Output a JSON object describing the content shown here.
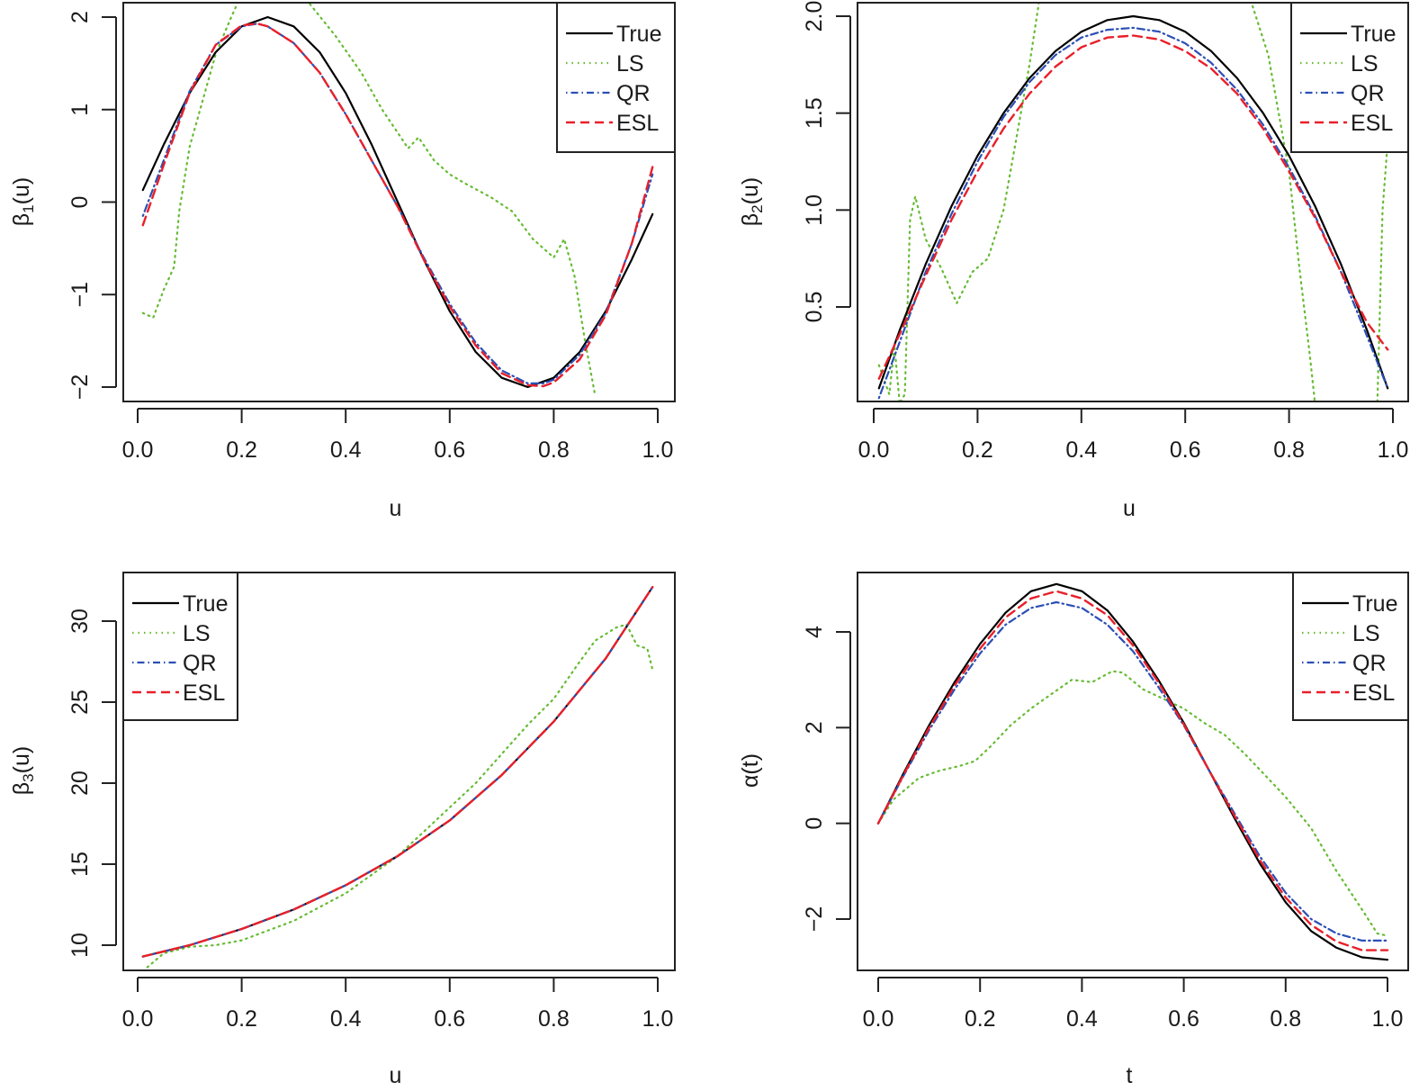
{
  "chart_data": [
    {
      "type": "line",
      "panel": "top-left",
      "title": "",
      "xlabel": "u",
      "ylabel": "β1(u)",
      "ylabel_symbol": "β",
      "ylabel_sub": "1",
      "ylabel_arg": "(u)",
      "xlim": [
        0.0,
        1.0
      ],
      "ylim": [
        -2.1,
        2.1
      ],
      "xticks": [
        "0.0",
        "0.2",
        "0.4",
        "0.6",
        "0.8",
        "1.0"
      ],
      "yticks": [
        "-2",
        "-1",
        "0",
        "1",
        "2"
      ],
      "grid": false,
      "legend_position": "top-right",
      "series": [
        {
          "name": "True",
          "style": "solid",
          "color": "#000000",
          "x": [
            0.01,
            0.05,
            0.1,
            0.15,
            0.2,
            0.25,
            0.3,
            0.35,
            0.4,
            0.45,
            0.5,
            0.55,
            0.6,
            0.65,
            0.7,
            0.75,
            0.8,
            0.85,
            0.9,
            0.95,
            0.99
          ],
          "y": [
            0.13,
            0.62,
            1.18,
            1.62,
            1.9,
            2.0,
            1.9,
            1.62,
            1.18,
            0.62,
            0.0,
            -0.62,
            -1.18,
            -1.62,
            -1.9,
            -2.0,
            -1.9,
            -1.62,
            -1.18,
            -0.62,
            -0.13
          ]
        },
        {
          "name": "LS",
          "style": "dotted",
          "color": "#66bb33",
          "x": [
            0.01,
            0.03,
            0.05,
            0.07,
            0.08,
            0.1,
            0.12,
            0.15,
            0.18,
            0.2,
            0.25,
            0.3,
            0.33,
            0.38,
            0.43,
            0.47,
            0.5,
            0.52,
            0.54,
            0.57,
            0.6,
            0.63,
            0.68,
            0.72,
            0.76,
            0.8,
            0.82,
            0.84,
            0.86,
            0.88
          ],
          "y": [
            -1.2,
            -1.25,
            -0.95,
            -0.7,
            -0.1,
            0.6,
            1.0,
            1.6,
            2.0,
            2.25,
            2.5,
            2.35,
            2.15,
            1.8,
            1.4,
            1.0,
            0.75,
            0.58,
            0.7,
            0.45,
            0.3,
            0.2,
            0.05,
            -0.1,
            -0.4,
            -0.6,
            -0.4,
            -0.8,
            -1.5,
            -2.1
          ]
        },
        {
          "name": "QR",
          "style": "dotdash",
          "color": "#2b4fb5",
          "x": [
            0.01,
            0.05,
            0.1,
            0.15,
            0.2,
            0.23,
            0.25,
            0.3,
            0.35,
            0.4,
            0.45,
            0.5,
            0.55,
            0.6,
            0.65,
            0.7,
            0.75,
            0.78,
            0.8,
            0.85,
            0.9,
            0.95,
            0.99
          ],
          "y": [
            -0.15,
            0.45,
            1.2,
            1.7,
            1.9,
            1.93,
            1.9,
            1.72,
            1.4,
            0.95,
            0.45,
            -0.05,
            -0.6,
            -1.1,
            -1.52,
            -1.82,
            -1.96,
            -1.96,
            -1.92,
            -1.65,
            -1.2,
            -0.45,
            0.3
          ]
        },
        {
          "name": "ESL",
          "style": "dashed",
          "color": "#e8202a",
          "x": [
            0.01,
            0.05,
            0.1,
            0.15,
            0.2,
            0.23,
            0.25,
            0.3,
            0.35,
            0.4,
            0.45,
            0.5,
            0.55,
            0.6,
            0.65,
            0.7,
            0.75,
            0.78,
            0.8,
            0.85,
            0.9,
            0.95,
            0.99
          ],
          "y": [
            -0.25,
            0.4,
            1.18,
            1.7,
            1.91,
            1.93,
            1.9,
            1.72,
            1.4,
            0.95,
            0.45,
            -0.05,
            -0.62,
            -1.13,
            -1.55,
            -1.85,
            -1.98,
            -1.99,
            -1.95,
            -1.7,
            -1.22,
            -0.45,
            0.38
          ]
        }
      ]
    },
    {
      "type": "line",
      "panel": "top-right",
      "title": "",
      "xlabel": "u",
      "ylabel": "β2(u)",
      "ylabel_symbol": "β",
      "ylabel_sub": "2",
      "ylabel_arg": "(u)",
      "xlim": [
        0.0,
        1.0
      ],
      "ylim": [
        0.0,
        2.05
      ],
      "xticks": [
        "0.0",
        "0.2",
        "0.4",
        "0.6",
        "0.8",
        "1.0"
      ],
      "yticks": [
        "0.5",
        "1.0",
        "1.5",
        "2.0"
      ],
      "grid": false,
      "legend_position": "top-right",
      "series": [
        {
          "name": "True",
          "style": "solid",
          "color": "#000000",
          "x": [
            0.01,
            0.05,
            0.1,
            0.15,
            0.2,
            0.25,
            0.3,
            0.35,
            0.4,
            0.45,
            0.5,
            0.55,
            0.6,
            0.65,
            0.7,
            0.75,
            0.8,
            0.85,
            0.9,
            0.95,
            0.99
          ],
          "y": [
            0.08,
            0.38,
            0.72,
            1.02,
            1.28,
            1.5,
            1.68,
            1.82,
            1.92,
            1.98,
            2.0,
            1.98,
            1.92,
            1.82,
            1.68,
            1.5,
            1.28,
            1.02,
            0.72,
            0.38,
            0.08
          ]
        },
        {
          "name": "LS",
          "style": "dotted",
          "color": "#66bb33",
          "x": [
            0.01,
            0.03,
            0.04,
            0.05,
            0.06,
            0.07,
            0.08,
            0.1,
            0.13,
            0.16,
            0.19,
            0.22,
            0.25,
            0.28,
            0.3,
            0.32,
            0.35,
            0.7,
            0.73,
            0.76,
            0.8,
            0.82,
            0.84,
            0.85,
            0.97,
            0.98,
            0.99
          ],
          "y": [
            0.2,
            0.05,
            0.3,
            0.0,
            0.05,
            0.95,
            1.07,
            0.85,
            0.7,
            0.52,
            0.68,
            0.75,
            1.0,
            1.45,
            1.75,
            2.1,
            2.3,
            2.3,
            2.05,
            1.8,
            1.2,
            0.7,
            0.25,
            0.0,
            0.0,
            1.0,
            1.35
          ]
        },
        {
          "name": "QR",
          "style": "dotdash",
          "color": "#2b4fb5",
          "x": [
            0.01,
            0.05,
            0.1,
            0.15,
            0.2,
            0.25,
            0.3,
            0.35,
            0.4,
            0.45,
            0.5,
            0.55,
            0.6,
            0.65,
            0.7,
            0.75,
            0.8,
            0.85,
            0.9,
            0.95,
            0.99
          ],
          "y": [
            0.03,
            0.32,
            0.68,
            0.98,
            1.25,
            1.48,
            1.66,
            1.8,
            1.89,
            1.93,
            1.94,
            1.92,
            1.86,
            1.76,
            1.62,
            1.44,
            1.22,
            0.97,
            0.68,
            0.35,
            0.08
          ]
        },
        {
          "name": "ESL",
          "style": "dashed",
          "color": "#e8202a",
          "x": [
            0.01,
            0.05,
            0.1,
            0.15,
            0.2,
            0.25,
            0.3,
            0.35,
            0.4,
            0.45,
            0.5,
            0.55,
            0.6,
            0.65,
            0.7,
            0.75,
            0.8,
            0.85,
            0.9,
            0.95,
            0.99
          ],
          "y": [
            0.13,
            0.36,
            0.66,
            0.95,
            1.2,
            1.42,
            1.6,
            1.74,
            1.84,
            1.89,
            1.9,
            1.88,
            1.82,
            1.73,
            1.6,
            1.42,
            1.2,
            0.96,
            0.68,
            0.42,
            0.28
          ]
        }
      ]
    },
    {
      "type": "line",
      "panel": "bottom-left",
      "title": "",
      "xlabel": "u",
      "ylabel": "β3(u)",
      "ylabel_symbol": "β",
      "ylabel_sub": "3",
      "ylabel_arg": "(u)",
      "xlim": [
        0.0,
        1.0
      ],
      "ylim": [
        8.4,
        32.9
      ],
      "xticks": [
        "0.0",
        "0.2",
        "0.4",
        "0.6",
        "0.8",
        "1.0"
      ],
      "yticks": [
        "10",
        "15",
        "20",
        "25",
        "30"
      ],
      "grid": false,
      "legend_position": "top-left",
      "series": [
        {
          "name": "True",
          "style": "solid",
          "color": "#000000",
          "x": [
            0.01,
            0.1,
            0.2,
            0.3,
            0.4,
            0.5,
            0.6,
            0.7,
            0.8,
            0.9,
            0.99
          ],
          "y": [
            9.3,
            10.0,
            11.0,
            12.2,
            13.7,
            15.5,
            17.7,
            20.5,
            23.8,
            27.7,
            32.1
          ]
        },
        {
          "name": "LS",
          "style": "dotted",
          "color": "#66bb33",
          "x": [
            0.01,
            0.05,
            0.1,
            0.15,
            0.2,
            0.3,
            0.4,
            0.5,
            0.55,
            0.6,
            0.65,
            0.7,
            0.75,
            0.8,
            0.85,
            0.88,
            0.92,
            0.94,
            0.96,
            0.98,
            0.99
          ],
          "y": [
            8.4,
            9.5,
            9.9,
            10.0,
            10.3,
            11.5,
            13.2,
            15.5,
            17.0,
            18.5,
            20.0,
            21.8,
            23.6,
            25.2,
            27.5,
            28.8,
            29.6,
            29.8,
            28.5,
            28.3,
            27.0
          ]
        },
        {
          "name": "QR",
          "style": "dotdash",
          "color": "#2b4fb5",
          "x": [
            0.01,
            0.1,
            0.2,
            0.3,
            0.4,
            0.5,
            0.6,
            0.7,
            0.8,
            0.9,
            0.99
          ],
          "y": [
            9.3,
            10.0,
            11.0,
            12.2,
            13.7,
            15.5,
            17.7,
            20.5,
            23.8,
            27.7,
            32.1
          ]
        },
        {
          "name": "ESL",
          "style": "dashed",
          "color": "#e8202a",
          "x": [
            0.01,
            0.1,
            0.2,
            0.3,
            0.4,
            0.5,
            0.6,
            0.7,
            0.8,
            0.9,
            0.99
          ],
          "y": [
            9.3,
            10.0,
            11.0,
            12.2,
            13.7,
            15.5,
            17.7,
            20.5,
            23.8,
            27.7,
            32.1
          ]
        }
      ]
    },
    {
      "type": "line",
      "panel": "bottom-right",
      "title": "",
      "xlabel": "t",
      "ylabel": "α(t)",
      "ylabel_symbol": "α",
      "ylabel_sub": "",
      "ylabel_arg": "(t)",
      "xlim": [
        0.0,
        1.0
      ],
      "ylim": [
        -3.1,
        5.4
      ],
      "xticks": [
        "0.0",
        "0.2",
        "0.4",
        "0.6",
        "0.8",
        "1.0"
      ],
      "yticks": [
        "-2",
        "0",
        "2",
        "4"
      ],
      "grid": false,
      "legend_position": "top-right",
      "series": [
        {
          "name": "True",
          "style": "solid",
          "color": "#000000",
          "x": [
            0.0,
            0.05,
            0.1,
            0.15,
            0.2,
            0.25,
            0.3,
            0.35,
            0.4,
            0.45,
            0.5,
            0.55,
            0.6,
            0.65,
            0.7,
            0.75,
            0.8,
            0.85,
            0.9,
            0.95,
            1.0
          ],
          "y": [
            0.0,
            1.05,
            2.05,
            2.95,
            3.75,
            4.4,
            4.85,
            5.0,
            4.85,
            4.45,
            3.8,
            3.0,
            2.1,
            1.1,
            0.1,
            -0.85,
            -1.65,
            -2.25,
            -2.6,
            -2.8,
            -2.85
          ]
        },
        {
          "name": "LS",
          "style": "dotted",
          "color": "#66bb33",
          "x": [
            0.0,
            0.03,
            0.08,
            0.12,
            0.16,
            0.19,
            0.22,
            0.26,
            0.3,
            0.34,
            0.38,
            0.42,
            0.46,
            0.48,
            0.52,
            0.56,
            0.6,
            0.64,
            0.68,
            0.72,
            0.76,
            0.8,
            0.85,
            0.9,
            0.95,
            0.98,
            1.0
          ],
          "y": [
            0.0,
            0.5,
            0.95,
            1.1,
            1.2,
            1.3,
            1.6,
            2.05,
            2.4,
            2.7,
            3.0,
            2.95,
            3.18,
            3.15,
            2.8,
            2.6,
            2.4,
            2.1,
            1.85,
            1.45,
            1.0,
            0.55,
            -0.1,
            -1.0,
            -1.8,
            -2.3,
            -2.35
          ]
        },
        {
          "name": "QR",
          "style": "dotdash",
          "color": "#2b4fb5",
          "x": [
            0.0,
            0.05,
            0.1,
            0.15,
            0.2,
            0.25,
            0.3,
            0.35,
            0.4,
            0.45,
            0.5,
            0.55,
            0.6,
            0.65,
            0.7,
            0.75,
            0.8,
            0.85,
            0.9,
            0.95,
            1.0
          ],
          "y": [
            0.0,
            1.0,
            1.95,
            2.8,
            3.55,
            4.15,
            4.5,
            4.62,
            4.5,
            4.15,
            3.6,
            2.85,
            2.05,
            1.1,
            0.2,
            -0.7,
            -1.45,
            -2.0,
            -2.3,
            -2.45,
            -2.45
          ]
        },
        {
          "name": "ESL",
          "style": "dashed",
          "color": "#e8202a",
          "x": [
            0.0,
            0.05,
            0.1,
            0.15,
            0.2,
            0.25,
            0.3,
            0.35,
            0.4,
            0.45,
            0.5,
            0.55,
            0.6,
            0.65,
            0.7,
            0.75,
            0.8,
            0.85,
            0.9,
            0.95,
            1.0
          ],
          "y": [
            0.0,
            1.02,
            2.0,
            2.88,
            3.65,
            4.3,
            4.7,
            4.85,
            4.7,
            4.35,
            3.72,
            2.95,
            2.07,
            1.1,
            0.15,
            -0.78,
            -1.55,
            -2.12,
            -2.47,
            -2.65,
            -2.65
          ]
        }
      ]
    }
  ],
  "legend": {
    "entries": [
      {
        "label": "True",
        "style": "solid",
        "color": "#000000"
      },
      {
        "label": "LS",
        "style": "dotted",
        "color": "#66bb33"
      },
      {
        "label": "QR",
        "style": "dotdash",
        "color": "#2b4fb5"
      },
      {
        "label": "ESL",
        "style": "dashed",
        "color": "#e8202a"
      }
    ]
  }
}
